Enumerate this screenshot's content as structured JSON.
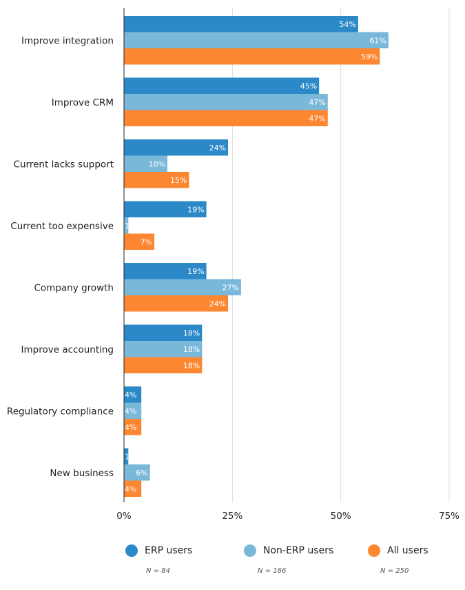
{
  "chart_data": {
    "type": "bar",
    "orientation": "horizontal",
    "categories": [
      "Improve integration",
      "Improve CRM",
      "Current lacks support",
      "Current too expensive",
      "Company growth",
      "Improve accounting",
      "Regulatory compliance",
      "New business"
    ],
    "series": [
      {
        "name": "ERP users",
        "n_label": "N = 84",
        "color": "#2b89c8",
        "values": [
          54,
          45,
          24,
          19,
          19,
          18,
          4,
          1
        ]
      },
      {
        "name": "Non-ERP users",
        "n_label": "N = 166",
        "color": "#7ab8d9",
        "values": [
          61,
          47,
          10,
          1,
          27,
          18,
          4,
          6
        ]
      },
      {
        "name": "All users",
        "n_label": "N = 250",
        "color": "#fd8631",
        "values": [
          59,
          47,
          15,
          7,
          24,
          18,
          4,
          4
        ]
      }
    ],
    "value_suffix": "%",
    "xlim": [
      0,
      75
    ],
    "xticks": [
      0,
      25,
      50,
      75
    ],
    "xtick_labels": [
      "0%",
      "25%",
      "50%",
      "75%"
    ],
    "grid": true,
    "legend_position": "bottom"
  }
}
